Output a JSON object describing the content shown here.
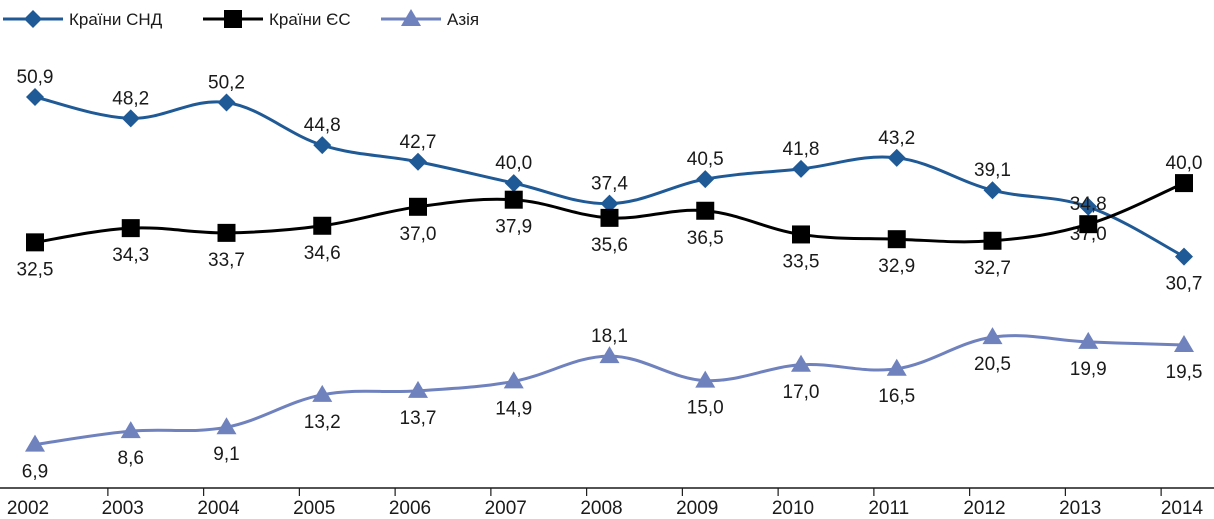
{
  "chart_data": {
    "type": "line",
    "categories": [
      "2002",
      "2003",
      "2004",
      "2005",
      "2006",
      "2007",
      "2008",
      "2009",
      "2010",
      "2011",
      "2012",
      "2013",
      "2014"
    ],
    "series": [
      {
        "name": "Країни СНД",
        "color": "#1f5a96",
        "marker": "diamond",
        "values": [
          50.9,
          48.2,
          50.2,
          44.8,
          42.7,
          40.0,
          37.4,
          40.5,
          41.8,
          43.2,
          39.1,
          37.0,
          30.7
        ],
        "labels": [
          "50,9",
          "48,2",
          "50,2",
          "44,8",
          "42,7",
          "40,0",
          "37,4",
          "40,5",
          "41,8",
          "43,2",
          "39,1",
          "37,0",
          "30,7"
        ]
      },
      {
        "name": "Країни ЄС",
        "color": "#000000",
        "marker": "square",
        "values": [
          32.5,
          34.3,
          33.7,
          34.6,
          37.0,
          37.9,
          35.6,
          36.5,
          33.5,
          32.9,
          32.7,
          34.8,
          40.0
        ],
        "labels": [
          "32,5",
          "34,3",
          "33,7",
          "34,6",
          "37,0",
          "37,9",
          "35,6",
          "36,5",
          "33,5",
          "32,9",
          "32,7",
          "34,8",
          "40,0"
        ]
      },
      {
        "name": "Азія",
        "color": "#6f82bd",
        "marker": "triangle",
        "values": [
          6.9,
          8.6,
          9.1,
          13.2,
          13.7,
          14.9,
          18.1,
          15.0,
          17.0,
          16.5,
          20.5,
          19.9,
          19.5
        ],
        "labels": [
          "6,9",
          "8,6",
          "9,1",
          "13,2",
          "13,7",
          "14,9",
          "18,1",
          "15,0",
          "17,0",
          "16,5",
          "20,5",
          "19,9",
          "19,5"
        ]
      }
    ],
    "legend_position": "top-left",
    "grid": false,
    "xlabel": "",
    "ylabel": ""
  }
}
